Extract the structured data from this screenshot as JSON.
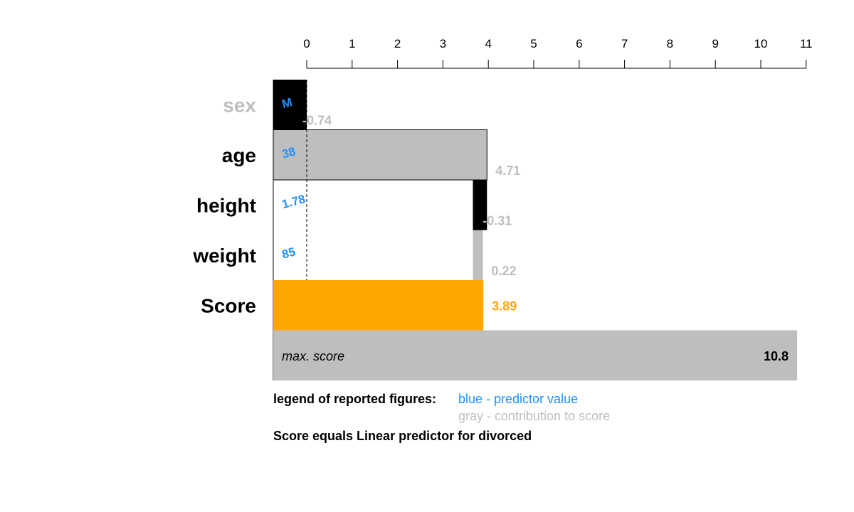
{
  "chart_data": {
    "type": "bar",
    "subtype": "score-contribution-waterfall",
    "x_ticks": [
      0,
      1,
      2,
      3,
      4,
      5,
      6,
      7,
      8,
      9,
      10,
      11
    ],
    "xlim": [
      0,
      11
    ],
    "x_axis_position": "top",
    "start_value": 0,
    "rows": [
      {
        "label": "sex",
        "predictor_value": "M",
        "contribution": -0.74,
        "contribution_text": "-0.74",
        "label_color": "#bebebe",
        "bar_color": "#000000"
      },
      {
        "label": "age",
        "predictor_value": "38",
        "contribution": 4.71,
        "contribution_text": "4.71",
        "label_color": "#000000",
        "bar_color": "#bebebe"
      },
      {
        "label": "height",
        "predictor_value": "1.78",
        "contribution": -0.31,
        "contribution_text": "-0.31",
        "label_color": "#000000",
        "bar_color": "#000000"
      },
      {
        "label": "weight",
        "predictor_value": "85",
        "contribution": 0.22,
        "contribution_text": "0.22",
        "label_color": "#000000",
        "bar_color": "#bebebe"
      }
    ],
    "score": {
      "label": "Score",
      "value": 3.89,
      "value_text": "3.89",
      "color": "#ffa500"
    },
    "max_score": {
      "label": "max. score",
      "value": 10.8,
      "value_text": "10.8",
      "color": "#bebebe"
    }
  },
  "legend": {
    "title": "legend of reported figures:",
    "blue_text": "blue - predictor value",
    "gray_text": "gray - contribution to score",
    "note": "Score equals Linear predictor for divorced"
  },
  "colors": {
    "predictor_blue": "#1e90ff",
    "contribution_gray": "#bebebe",
    "score_orange": "#ffa500",
    "text_black": "#000000"
  }
}
